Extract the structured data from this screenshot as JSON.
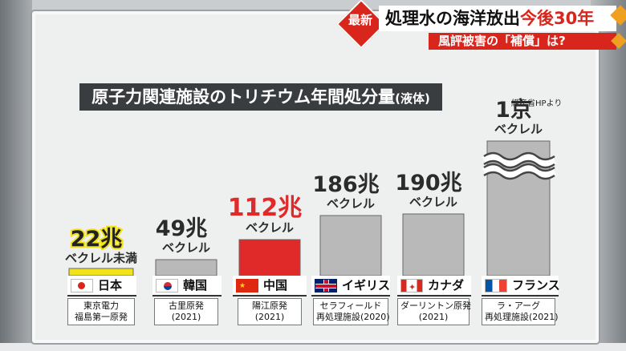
{
  "caption": {
    "badge": "最新",
    "headline_a": "処理水の海洋放出",
    "headline_b": "今後30年",
    "subline": "風評被害の「補償」は?"
  },
  "title_main": "原子力関連施設のトリチウム年間処分量",
  "title_paren": "(液体)",
  "source": "経産省HPより",
  "colors": {
    "japan_bar": "#f2e21a",
    "china_bar": "#e02a2a",
    "other_bar": "#b9b9b9",
    "accent_red": "#d9261c"
  },
  "chart_data": {
    "type": "bar",
    "title": "原子力関連施設のトリチウム年間処分量(液体)",
    "unit": "ベクレル",
    "categories": [
      "日本",
      "韓国",
      "中国",
      "イギリス",
      "カナダ",
      "フランス"
    ],
    "values": [
      22000000000000.0,
      49000000000000.0,
      112000000000000.0,
      186000000000000.0,
      190000000000000.0,
      1e+16
    ],
    "value_labels": [
      "22兆",
      "49兆",
      "112兆",
      "186兆",
      "190兆",
      "1京"
    ],
    "value_sublabels": [
      "ベクレル未満",
      "ベクレル",
      "ベクレル",
      "ベクレル",
      "ベクレル",
      "ベクレル"
    ],
    "axis_break_on": "フランス",
    "facilities": [
      [
        "東京電力",
        "福島第一原発"
      ],
      [
        "古里原発",
        "(2021)"
      ],
      [
        "陽江原発",
        "(2021)"
      ],
      [
        "セラフィールド",
        "再処理施設(2020)"
      ],
      [
        "ダーリントン原発",
        "(2021)"
      ],
      [
        "ラ・アーグ",
        "再処理施設(2021)"
      ]
    ]
  }
}
